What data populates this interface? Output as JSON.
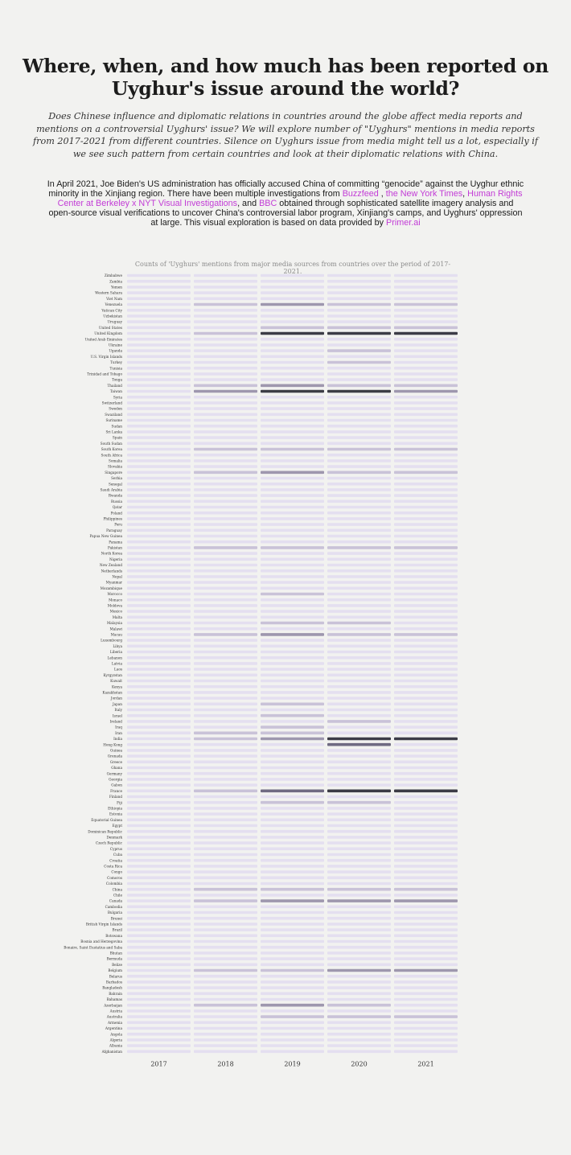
{
  "header": {
    "title": "Where, when, and how much has been reported on Uyghur's issue around the world?",
    "subtitle": "Does Chinese influence and diplomatic relations in countries around the globe affect media reports and mentions on a controversial Uyghurs' issue? We will explore number of \"Uyghurs\" mentions in media reports from 2017-2021 from different countries. Silence on Uyghurs issue from media might tell us a lot, especially if we see such pattern from certain countries and look at their diplomatic relations with China.",
    "intro": {
      "part1": "In April 2021, Joe Biden's US administration has officially accused China of committing “genocide” against the Uyghur ethnic minority in the Xinjiang region. There have been multiple investigations from ",
      "link1": "Buzzfeed",
      "sep1": " , ",
      "link2": "the New York Times",
      "sep2": ", ",
      "link3": "Human Rights Center at Berkeley x NYT Visual Investigations",
      "sep3": ", and ",
      "link4": "BBC",
      "part2": " obtained through sophisticated satellite imagery analysis and open-source visual verifications to uncover China's controversial labor program, Xinjiang's camps, and Uyghurs' oppression at large. This visual exploration is based on data provided by ",
      "link5": "Primer.ai"
    }
  },
  "colors": {
    "background": "#f2f2f0",
    "link": "#c23cd6",
    "cell_empty": "#e4dff0",
    "cell_max": "#3c3c46"
  },
  "chart_data": {
    "type": "heatmap",
    "title": "Counts of 'Uyghurs' mentions from major media sources from countries over the period of 2017-2021.",
    "value_scale": "relative mention intensity 0-4",
    "x": [
      "2017",
      "2018",
      "2019",
      "2020",
      "2021"
    ],
    "y": [
      "Zimbabwe",
      "Zambia",
      "Yemen",
      "Western Sahara",
      "Viet Nam",
      "Venezuela",
      "Vatican City",
      "Uzbekistan",
      "Uruguay",
      "United States",
      "United Kingdom",
      "United Arab Emirates",
      "Ukraine",
      "Uganda",
      "U.S. Virgin Islands",
      "Turkey",
      "Tunisia",
      "Trinidad and Tobago",
      "Tonga",
      "Thailand",
      "Taiwan",
      "Syria",
      "Switzerland",
      "Sweden",
      "Swaziland",
      "Suriname",
      "Sudan",
      "Sri Lanka",
      "Spain",
      "South Sudan",
      "South Korea",
      "South Africa",
      "Somalia",
      "Slovakia",
      "Singapore",
      "Serbia",
      "Senegal",
      "Saudi Arabia",
      "Rwanda",
      "Russia",
      "Qatar",
      "Poland",
      "Philippines",
      "Peru",
      "Paraguay",
      "Papua New Guinea",
      "Panama",
      "Pakistan",
      "North Korea",
      "Nigeria",
      "New Zealand",
      "Netherlands",
      "Nepal",
      "Myanmar",
      "Mozambique",
      "Morocco",
      "Monaco",
      "Moldova",
      "Mexico",
      "Malta",
      "Malaysia",
      "Malawi",
      "Macau",
      "Luxembourg",
      "Libya",
      "Liberia",
      "Lebanon",
      "Latvia",
      "Laos",
      "Kyrgyzstan",
      "Kuwait",
      "Kenya",
      "Kazakhstan",
      "Jordan",
      "Japan",
      "Italy",
      "Israel",
      "Ireland",
      "Iraq",
      "Iran",
      "India",
      "Hong Kong",
      "Guinea",
      "Grenada",
      "Greece",
      "Ghana",
      "Germany",
      "Georgia",
      "Gabon",
      "France",
      "Finland",
      "Fiji",
      "Ethiopia",
      "Estonia",
      "Equatorial Guinea",
      "Egypt",
      "Dominican Republic",
      "Denmark",
      "Czech Republic",
      "Cyprus",
      "Cuba",
      "Croatia",
      "Costa Rica",
      "Congo",
      "Comoros",
      "Colombia",
      "China",
      "Chile",
      "Canada",
      "Cambodia",
      "Bulgaria",
      "Brunei",
      "British Virgin Islands",
      "Brazil",
      "Botswana",
      "Bosnia and Herzegovina",
      "Bonaire, Saint Eustatius and Saba",
      "Bhutan",
      "Bermuda",
      "Belize",
      "Belgium",
      "Belarus",
      "Barbados",
      "Bangladesh",
      "Bahrain",
      "Bahamas",
      "Azerbaijan",
      "Austria",
      "Australia",
      "Armenia",
      "Argentina",
      "Angola",
      "Algeria",
      "Albania",
      "Afghanistan"
    ],
    "values": [
      [
        0,
        0,
        0,
        0,
        0
      ],
      [
        0,
        0,
        0,
        0,
        0
      ],
      [
        0,
        0,
        0,
        0,
        0
      ],
      [
        0,
        0,
        0,
        0,
        0
      ],
      [
        0,
        0,
        0,
        0,
        0
      ],
      [
        0,
        1,
        2,
        1,
        1
      ],
      [
        0,
        0,
        0,
        0,
        0
      ],
      [
        0,
        0,
        0,
        0,
        0
      ],
      [
        0,
        0,
        0,
        0,
        0
      ],
      [
        0,
        0,
        1,
        1,
        1
      ],
      [
        0,
        1,
        4,
        4,
        4
      ],
      [
        0,
        0,
        0,
        0,
        0
      ],
      [
        0,
        0,
        0,
        0,
        0
      ],
      [
        0,
        0,
        0,
        1,
        0
      ],
      [
        0,
        0,
        0,
        0,
        0
      ],
      [
        0,
        0,
        0,
        1,
        0
      ],
      [
        0,
        0,
        0,
        0,
        0
      ],
      [
        0,
        0,
        0,
        0,
        0
      ],
      [
        0,
        0,
        0,
        0,
        0
      ],
      [
        0,
        1,
        2,
        1,
        1
      ],
      [
        0,
        2,
        4,
        4,
        2
      ],
      [
        0,
        0,
        0,
        0,
        0
      ],
      [
        0,
        0,
        0,
        0,
        0
      ],
      [
        0,
        0,
        0,
        0,
        0
      ],
      [
        0,
        0,
        0,
        0,
        0
      ],
      [
        0,
        0,
        0,
        0,
        0
      ],
      [
        0,
        0,
        0,
        0,
        0
      ],
      [
        0,
        0,
        0,
        0,
        0
      ],
      [
        0,
        0,
        0,
        0,
        0
      ],
      [
        0,
        0,
        0,
        0,
        0
      ],
      [
        0,
        1,
        1,
        1,
        1
      ],
      [
        0,
        0,
        0,
        0,
        0
      ],
      [
        0,
        0,
        0,
        0,
        0
      ],
      [
        0,
        0,
        0,
        0,
        0
      ],
      [
        0,
        1,
        2,
        1,
        1
      ],
      [
        0,
        0,
        0,
        0,
        0
      ],
      [
        0,
        0,
        0,
        0,
        0
      ],
      [
        0,
        0,
        0,
        0,
        0
      ],
      [
        0,
        0,
        0,
        0,
        0
      ],
      [
        0,
        0,
        0,
        0,
        0
      ],
      [
        0,
        0,
        0,
        0,
        0
      ],
      [
        0,
        0,
        0,
        0,
        0
      ],
      [
        0,
        0,
        0,
        0,
        0
      ],
      [
        0,
        0,
        0,
        0,
        0
      ],
      [
        0,
        0,
        0,
        0,
        0
      ],
      [
        0,
        0,
        0,
        0,
        0
      ],
      [
        0,
        0,
        0,
        0,
        0
      ],
      [
        0,
        1,
        1,
        1,
        1
      ],
      [
        0,
        0,
        0,
        0,
        0
      ],
      [
        0,
        0,
        0,
        0,
        0
      ],
      [
        0,
        0,
        0,
        0,
        0
      ],
      [
        0,
        0,
        0,
        0,
        0
      ],
      [
        0,
        0,
        0,
        0,
        0
      ],
      [
        0,
        0,
        0,
        0,
        0
      ],
      [
        0,
        0,
        0,
        0,
        0
      ],
      [
        0,
        0,
        1,
        0,
        0
      ],
      [
        0,
        0,
        0,
        0,
        0
      ],
      [
        0,
        0,
        0,
        0,
        0
      ],
      [
        0,
        0,
        0,
        0,
        0
      ],
      [
        0,
        0,
        0,
        0,
        0
      ],
      [
        0,
        0,
        1,
        1,
        0
      ],
      [
        0,
        0,
        0,
        0,
        0
      ],
      [
        0,
        1,
        2,
        1,
        1
      ],
      [
        0,
        0,
        0,
        0,
        0
      ],
      [
        0,
        0,
        0,
        0,
        0
      ],
      [
        0,
        0,
        0,
        0,
        0
      ],
      [
        0,
        0,
        0,
        0,
        0
      ],
      [
        0,
        0,
        0,
        0,
        0
      ],
      [
        0,
        0,
        0,
        0,
        0
      ],
      [
        0,
        0,
        0,
        0,
        0
      ],
      [
        0,
        0,
        0,
        0,
        0
      ],
      [
        0,
        0,
        0,
        0,
        0
      ],
      [
        0,
        0,
        0,
        0,
        0
      ],
      [
        0,
        0,
        0,
        0,
        0
      ],
      [
        0,
        0,
        1,
        0,
        0
      ],
      [
        0,
        0,
        0,
        0,
        0
      ],
      [
        0,
        0,
        1,
        0,
        0
      ],
      [
        0,
        0,
        0,
        1,
        0
      ],
      [
        0,
        0,
        1,
        0,
        0
      ],
      [
        0,
        1,
        1,
        0,
        0
      ],
      [
        0,
        1,
        2,
        4,
        4
      ],
      [
        0,
        0,
        0,
        3,
        0
      ],
      [
        0,
        0,
        0,
        0,
        0
      ],
      [
        0,
        0,
        0,
        0,
        0
      ],
      [
        0,
        0,
        0,
        0,
        0
      ],
      [
        0,
        0,
        0,
        0,
        0
      ],
      [
        0,
        0,
        0,
        0,
        0
      ],
      [
        0,
        0,
        0,
        0,
        0
      ],
      [
        0,
        0,
        0,
        0,
        0
      ],
      [
        0,
        1,
        3,
        4,
        4
      ],
      [
        0,
        0,
        0,
        0,
        0
      ],
      [
        0,
        0,
        1,
        1,
        0
      ],
      [
        0,
        0,
        0,
        0,
        0
      ],
      [
        0,
        0,
        0,
        0,
        0
      ],
      [
        0,
        0,
        0,
        0,
        0
      ],
      [
        0,
        0,
        0,
        0,
        0
      ],
      [
        0,
        0,
        0,
        0,
        0
      ],
      [
        0,
        0,
        0,
        0,
        0
      ],
      [
        0,
        0,
        0,
        0,
        0
      ],
      [
        0,
        0,
        0,
        0,
        0
      ],
      [
        0,
        0,
        0,
        0,
        0
      ],
      [
        0,
        0,
        0,
        0,
        0
      ],
      [
        0,
        0,
        0,
        0,
        0
      ],
      [
        0,
        0,
        0,
        0,
        0
      ],
      [
        0,
        0,
        0,
        0,
        0
      ],
      [
        0,
        0,
        0,
        0,
        0
      ],
      [
        0,
        1,
        1,
        1,
        1
      ],
      [
        0,
        0,
        0,
        0,
        0
      ],
      [
        0,
        1,
        2,
        2,
        2
      ],
      [
        0,
        0,
        0,
        0,
        0
      ],
      [
        0,
        0,
        0,
        0,
        0
      ],
      [
        0,
        0,
        0,
        0,
        0
      ],
      [
        0,
        0,
        0,
        0,
        0
      ],
      [
        0,
        0,
        0,
        0,
        0
      ],
      [
        0,
        0,
        0,
        0,
        0
      ],
      [
        0,
        0,
        0,
        0,
        0
      ],
      [
        0,
        0,
        0,
        0,
        0
      ],
      [
        0,
        0,
        0,
        0,
        0
      ],
      [
        0,
        0,
        0,
        0,
        0
      ],
      [
        0,
        0,
        0,
        0,
        0
      ],
      [
        0,
        1,
        1,
        2,
        2
      ],
      [
        0,
        0,
        0,
        0,
        0
      ],
      [
        0,
        0,
        0,
        0,
        0
      ],
      [
        0,
        0,
        0,
        0,
        0
      ],
      [
        0,
        0,
        0,
        0,
        0
      ],
      [
        0,
        0,
        0,
        0,
        0
      ],
      [
        0,
        1,
        2,
        1,
        0
      ],
      [
        0,
        0,
        0,
        0,
        0
      ],
      [
        0,
        0,
        1,
        1,
        1
      ],
      [
        0,
        0,
        0,
        0,
        0
      ],
      [
        0,
        0,
        0,
        0,
        0
      ],
      [
        0,
        0,
        0,
        0,
        0
      ],
      [
        0,
        0,
        0,
        0,
        0
      ],
      [
        0,
        0,
        0,
        0,
        0
      ],
      [
        0,
        0,
        0,
        0,
        0
      ]
    ],
    "xlabel": "",
    "ylabel": "",
    "grid": false,
    "legend": "none"
  }
}
